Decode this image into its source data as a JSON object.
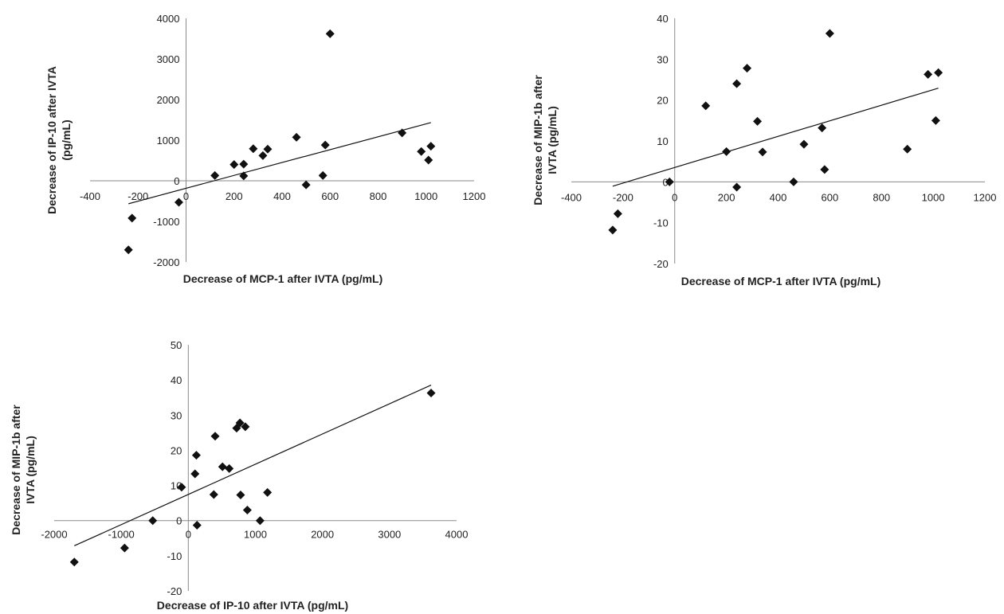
{
  "chart_data": [
    {
      "type": "scatter",
      "xlabel": "Decrease of MCP-1 after IVTA (pg/mL)",
      "ylabel": [
        "Decrease of IP-10  after IVTA",
        "(pg/mL)"
      ],
      "xlim": [
        -400,
        1200
      ],
      "ylim": [
        -2000,
        4000
      ],
      "xticks": [
        -400,
        -200,
        0,
        200,
        400,
        600,
        800,
        1000,
        1200
      ],
      "yticks": [
        -2000,
        -1000,
        0,
        1000,
        2000,
        3000,
        4000
      ],
      "trendline": true,
      "marker": "diamond",
      "points": [
        {
          "x": -240,
          "y": -1700
        },
        {
          "x": -225,
          "y": -920
        },
        {
          "x": -30,
          "y": -530
        },
        {
          "x": 120,
          "y": 130
        },
        {
          "x": 200,
          "y": 400
        },
        {
          "x": 240,
          "y": 410
        },
        {
          "x": 240,
          "y": 120
        },
        {
          "x": 280,
          "y": 790
        },
        {
          "x": 320,
          "y": 620
        },
        {
          "x": 340,
          "y": 780
        },
        {
          "x": 460,
          "y": 1070
        },
        {
          "x": 500,
          "y": -100
        },
        {
          "x": 570,
          "y": 130
        },
        {
          "x": 580,
          "y": 880
        },
        {
          "x": 600,
          "y": 3620
        },
        {
          "x": 900,
          "y": 1180
        },
        {
          "x": 980,
          "y": 720
        },
        {
          "x": 1010,
          "y": 510
        },
        {
          "x": 1020,
          "y": 850
        }
      ]
    },
    {
      "type": "scatter",
      "xlabel": "Decrease of MCP-1 after IVTA (pg/mL)",
      "ylabel": [
        "Decrease of MIP-1b  after",
        "IVTA (pg/mL)"
      ],
      "xlim": [
        -400,
        1200
      ],
      "ylim": [
        -20,
        40
      ],
      "xticks": [
        -400,
        -200,
        0,
        200,
        400,
        600,
        800,
        1000,
        1200
      ],
      "yticks": [
        -20,
        -10,
        0,
        10,
        20,
        30,
        40
      ],
      "trendline": true,
      "marker": "diamond",
      "points": [
        {
          "x": -240,
          "y": -11.8
        },
        {
          "x": -220,
          "y": -7.8
        },
        {
          "x": -20,
          "y": 0
        },
        {
          "x": 120,
          "y": 18.6
        },
        {
          "x": 200,
          "y": 7.4
        },
        {
          "x": 240,
          "y": 24
        },
        {
          "x": 240,
          "y": -1.3
        },
        {
          "x": 280,
          "y": 27.8
        },
        {
          "x": 320,
          "y": 14.8
        },
        {
          "x": 340,
          "y": 7.3
        },
        {
          "x": 460,
          "y": 0
        },
        {
          "x": 500,
          "y": 9.2
        },
        {
          "x": 570,
          "y": 13.2
        },
        {
          "x": 580,
          "y": 3
        },
        {
          "x": 600,
          "y": 36.3
        },
        {
          "x": 900,
          "y": 8
        },
        {
          "x": 980,
          "y": 26.3
        },
        {
          "x": 1010,
          "y": 15
        },
        {
          "x": 1020,
          "y": 26.7
        }
      ]
    },
    {
      "type": "scatter",
      "xlabel": "Decrease of IP-10 after IVTA (pg/mL)",
      "ylabel": [
        "Decrease of MIP-1b  after",
        "IVTA (pg/mL)"
      ],
      "xlim": [
        -2000,
        4000
      ],
      "ylim": [
        -20,
        50
      ],
      "xticks": [
        -2000,
        -1000,
        0,
        1000,
        2000,
        3000,
        4000
      ],
      "yticks": [
        -20,
        -10,
        0,
        10,
        20,
        30,
        40,
        50
      ],
      "trendline": true,
      "marker": "diamond",
      "points": [
        {
          "x": -1700,
          "y": -11.8
        },
        {
          "x": -950,
          "y": -7.8
        },
        {
          "x": -530,
          "y": 0
        },
        {
          "x": -100,
          "y": 9.5
        },
        {
          "x": 100,
          "y": 13.3
        },
        {
          "x": 120,
          "y": 18.6
        },
        {
          "x": 130,
          "y": -1.3
        },
        {
          "x": 380,
          "y": 7.4
        },
        {
          "x": 400,
          "y": 24
        },
        {
          "x": 510,
          "y": 15.3
        },
        {
          "x": 610,
          "y": 14.8
        },
        {
          "x": 720,
          "y": 26.3
        },
        {
          "x": 770,
          "y": 27.8
        },
        {
          "x": 780,
          "y": 7.3
        },
        {
          "x": 850,
          "y": 26.7
        },
        {
          "x": 880,
          "y": 3
        },
        {
          "x": 1070,
          "y": 0
        },
        {
          "x": 1180,
          "y": 8
        },
        {
          "x": 3620,
          "y": 36.3
        }
      ]
    }
  ]
}
